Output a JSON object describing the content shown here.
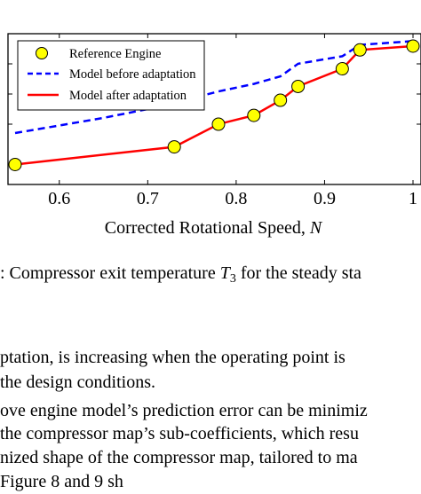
{
  "figure": {
    "chart_data": {
      "type": "line",
      "xlabel": "Corrected Rotational Speed, N",
      "x_ticks": [
        "0.6",
        "0.7",
        "0.8",
        "0.9",
        "1"
      ],
      "xlim": [
        0.55,
        1.0
      ],
      "ylim": [
        0,
        1
      ],
      "grid": false,
      "legend_placement": "top-left",
      "y_scale_note": "y tick labels not visible (cropped)",
      "series": [
        {
          "name": "Reference Engine",
          "style": "markers",
          "color": "#ffff00",
          "x": [
            0.55,
            0.73,
            0.78,
            0.82,
            0.85,
            0.87,
            0.92,
            0.94,
            1.0
          ],
          "y": [
            0.06,
            0.2,
            0.38,
            0.45,
            0.57,
            0.68,
            0.82,
            0.97,
            1.0
          ]
        },
        {
          "name": "Model before adaptation",
          "style": "dashed",
          "color": "#0000ff",
          "x": [
            0.55,
            0.6,
            0.65,
            0.7,
            0.73,
            0.78,
            0.82,
            0.85,
            0.87,
            0.92,
            0.94,
            1.0
          ],
          "y": [
            0.31,
            0.37,
            0.43,
            0.5,
            0.55,
            0.64,
            0.7,
            0.76,
            0.86,
            0.92,
            1.01,
            1.04
          ]
        },
        {
          "name": "Model after adaptation",
          "style": "solid",
          "color": "#ff0000",
          "x": [
            0.55,
            0.73,
            0.78,
            0.82,
            0.85,
            0.87,
            0.92,
            0.94,
            1.0
          ],
          "y": [
            0.06,
            0.2,
            0.38,
            0.45,
            0.57,
            0.68,
            0.82,
            0.97,
            1.0
          ]
        }
      ]
    },
    "xlabel_main": "Corrected Rotational Speed, ",
    "xlabel_var": "N"
  },
  "caption": {
    "lead": ": Compressor exit temperature ",
    "var": "T",
    "sub": "3",
    "tail": " for the steady sta"
  },
  "body_lines": [
    "ptation, is increasing when the operating point is",
    " the design conditions.",
    "ove engine model’s prediction error can be minimiz",
    "the compressor map’s sub-coefficients, which resu",
    "nized shape of the compressor map, tailored to ma",
    "                    Figure 8 and 9 sh"
  ]
}
